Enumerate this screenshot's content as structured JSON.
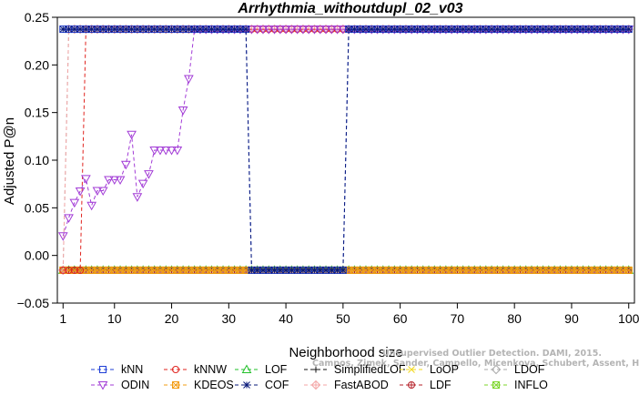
{
  "chart_data": {
    "type": "line",
    "title": "Arrhythmia_withoutdupl_02_v03",
    "xlabel": "Neighborhood size",
    "ylabel": "Adjusted P@n",
    "xlim": [
      0,
      101
    ],
    "ylim": [
      -0.05,
      0.25
    ],
    "xticks": [
      1,
      10,
      20,
      30,
      40,
      50,
      60,
      70,
      80,
      90,
      100
    ],
    "yticks": [
      -0.05,
      0,
      0.05,
      0.1,
      0.15,
      0.2,
      0.25
    ],
    "ytick_labels": [
      "−0.05",
      "0.00",
      "0.05",
      "0.10",
      "0.15",
      "0.20",
      "0.25"
    ],
    "grid": false,
    "legend_position": "bottom",
    "high_value": 0.2375,
    "low_value": -0.0155,
    "series": [
      {
        "name": "kNN",
        "color": "#1f3fd6",
        "marker": "square",
        "segments": [
          {
            "from": 1,
            "to": 33,
            "value": 0.2375
          },
          {
            "from": 34,
            "to": 50,
            "value": -0.0155
          },
          {
            "from": 51,
            "to": 100,
            "value": 0.2375
          }
        ]
      },
      {
        "name": "kNNW",
        "color": "#e0231e",
        "marker": "circle",
        "segments": [
          {
            "from": 1,
            "to": 4,
            "value": -0.0155
          },
          {
            "from": 5,
            "to": 100,
            "value": 0.2375
          }
        ]
      },
      {
        "name": "LOF",
        "color": "#22c02a",
        "marker": "triangle-up",
        "segments": [
          {
            "from": 1,
            "to": 100,
            "value": -0.0155
          }
        ]
      },
      {
        "name": "SimplifiedLOF",
        "color": "#111111",
        "marker": "plus",
        "segments": [
          {
            "from": 1,
            "to": 100,
            "value": -0.0155
          }
        ]
      },
      {
        "name": "LoOP",
        "color": "#f2d81a",
        "marker": "x",
        "segments": [
          {
            "from": 1,
            "to": 100,
            "value": -0.0155
          }
        ]
      },
      {
        "name": "LDOF",
        "color": "#aaaaaa",
        "marker": "diamond",
        "segments": [
          {
            "from": 1,
            "to": 1,
            "value": -0.0155
          },
          {
            "from": 2,
            "to": 100,
            "value": 0.2375
          }
        ]
      },
      {
        "name": "ODIN",
        "color": "#a23bd6",
        "marker": "triangle-down",
        "points": [
          [
            1,
            0.0205
          ],
          [
            2,
            0.0395
          ],
          [
            3,
            0.0555
          ],
          [
            4,
            0.0675
          ],
          [
            5,
            0.0805
          ],
          [
            6,
            0.0525
          ],
          [
            7,
            0.068
          ],
          [
            8,
            0.068
          ],
          [
            9,
            0.0795
          ],
          [
            10,
            0.0795
          ],
          [
            11,
            0.0795
          ],
          [
            12,
            0.0955
          ],
          [
            13,
            0.127
          ],
          [
            14,
            0.0615
          ],
          [
            15,
            0.0755
          ],
          [
            16,
            0.0855
          ],
          [
            17,
            0.1105
          ],
          [
            18,
            0.1105
          ],
          [
            19,
            0.1105
          ],
          [
            20,
            0.1105
          ],
          [
            21,
            0.1105
          ],
          [
            22,
            0.1525
          ],
          [
            23,
            0.1855
          ],
          [
            24,
            0.2375
          ]
        ],
        "tail": {
          "from": 25,
          "to": 100,
          "value": 0.2375
        }
      },
      {
        "name": "KDEOS",
        "color": "#f39c12",
        "marker": "square-x",
        "segments": [
          {
            "from": 1,
            "to": 100,
            "value": -0.0155
          }
        ]
      },
      {
        "name": "COF",
        "color": "#0a1a7a",
        "marker": "asterisk",
        "segments": [
          {
            "from": 1,
            "to": 33,
            "value": 0.2375
          },
          {
            "from": 34,
            "to": 50,
            "value": -0.0155
          },
          {
            "from": 51,
            "to": 100,
            "value": 0.2375
          }
        ]
      },
      {
        "name": "FastABOD",
        "color": "#f4a6a6",
        "marker": "diamond-plus",
        "segments": [
          {
            "from": 1,
            "to": 1,
            "value": -0.0155
          },
          {
            "from": 2,
            "to": 100,
            "value": 0.2375
          }
        ]
      },
      {
        "name": "LDF",
        "color": "#b5222a",
        "marker": "circle-plus",
        "segments": [
          {
            "from": 1,
            "to": 14,
            "value": -0.0155
          },
          {
            "from": 15,
            "to": 15,
            "value": -0.0155
          },
          {
            "from": 16,
            "to": 100,
            "value": -0.0155
          }
        ]
      },
      {
        "name": "INFLO",
        "color": "#7cd62a",
        "marker": "square-x",
        "segments": [
          {
            "from": 1,
            "to": 100,
            "value": -0.0155
          }
        ]
      }
    ],
    "extra_series_note": "",
    "watermark": [
      "Unsupervised Outlier Detection. DAMI, 2015.",
      "Campos, Zimek, Sander, Campello, Micenkova, Schubert, Assent, Houle"
    ]
  }
}
